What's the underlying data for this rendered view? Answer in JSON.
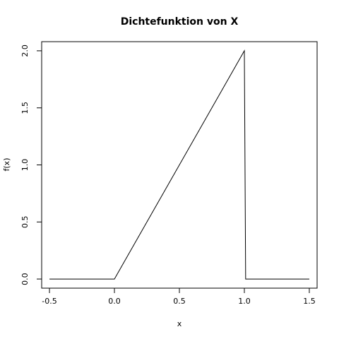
{
  "chart_data": {
    "type": "line",
    "title": "Dichtefunktion von X",
    "xlabel": "x",
    "ylabel": "f(x)",
    "xlim": [
      -0.56,
      1.56
    ],
    "ylim": [
      -0.08,
      2.08
    ],
    "xticks": [
      -0.5,
      0.0,
      0.5,
      1.0,
      1.5
    ],
    "xtick_labels": [
      "-0.5",
      "0.0",
      "0.5",
      "1.0",
      "1.5"
    ],
    "yticks": [
      0.0,
      0.5,
      1.0,
      1.5,
      2.0
    ],
    "ytick_labels": [
      "0.0",
      "0.5",
      "1.0",
      "1.5",
      "2.0"
    ],
    "grid": false,
    "series": [
      {
        "x": [
          -0.5,
          0.0,
          1.0,
          1.01,
          1.5
        ],
        "y": [
          0.0,
          0.0,
          2.0,
          0.0,
          0.0
        ],
        "color": "#000000"
      }
    ]
  }
}
